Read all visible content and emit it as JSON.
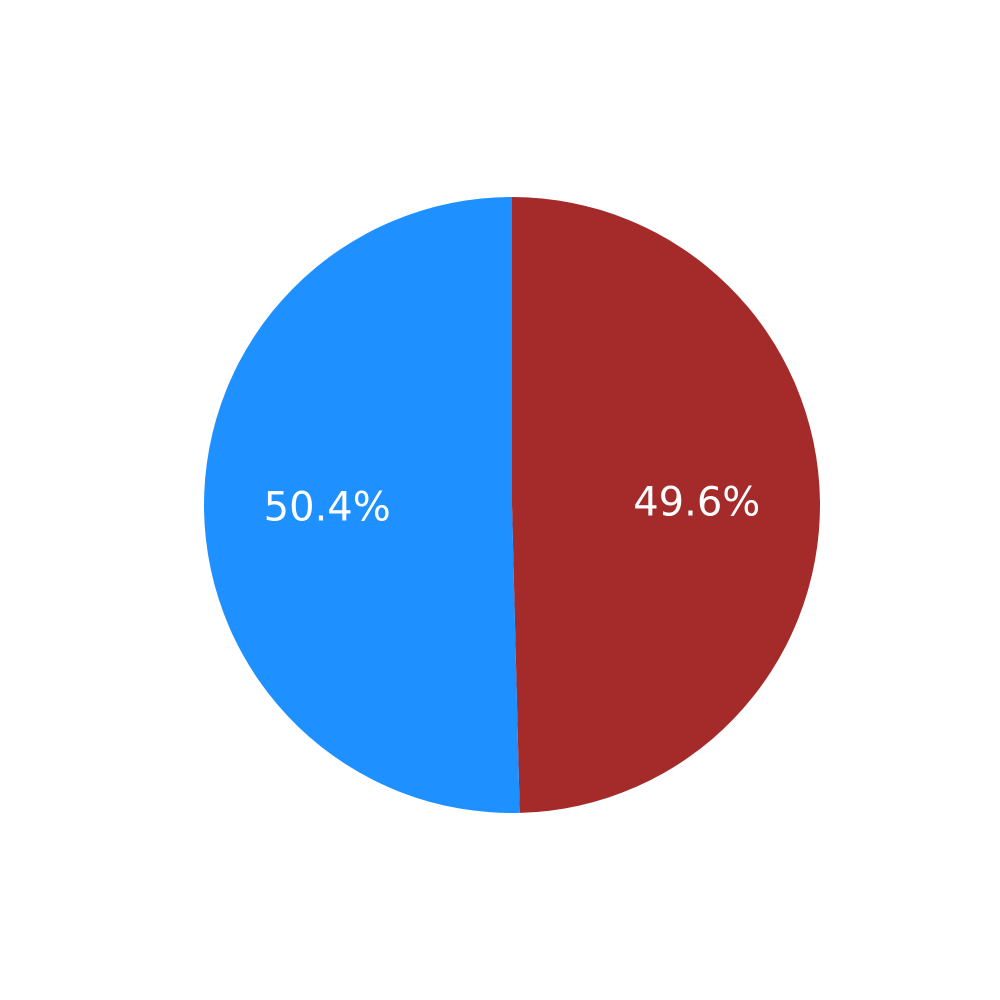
{
  "chart_data": {
    "type": "pie",
    "title": "",
    "slices": [
      {
        "value": 49.6,
        "label": "49.6%",
        "color": "#A52A2A"
      },
      {
        "value": 50.4,
        "label": "50.4%",
        "color": "#1E90FF"
      }
    ],
    "start_angle_deg": 90,
    "direction": "clockwise",
    "legend": "none"
  }
}
